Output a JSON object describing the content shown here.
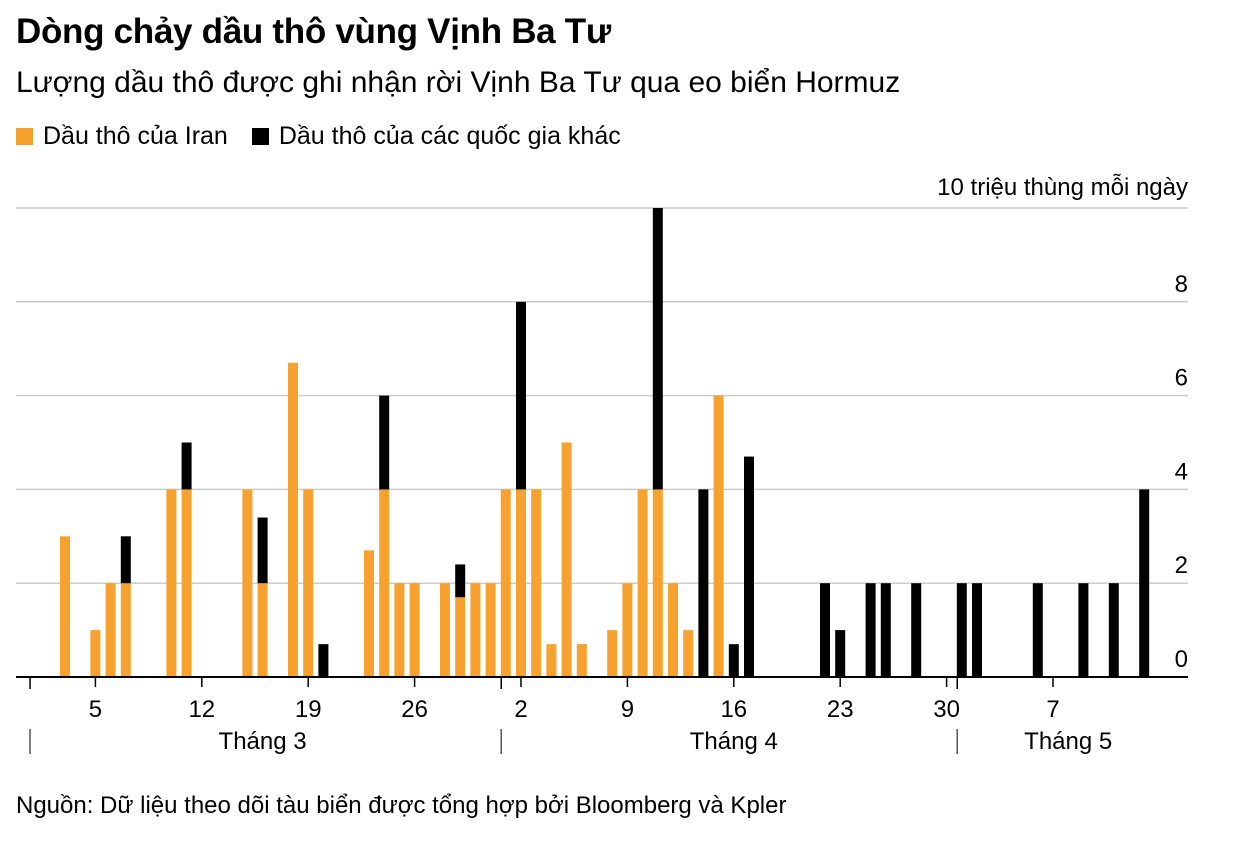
{
  "title": "Dòng chảy dầu thô vùng Vịnh Ba Tư",
  "subtitle": "Lượng dầu thô được ghi nhận rời Vịnh Ba Tư qua eo biển Hormuz",
  "source": "Nguồn: Dữ liệu theo dõi tàu biển được tổng hợp bởi Bloomberg và Kpler",
  "colors": {
    "iran": "#f7a12e",
    "other": "#000000",
    "grid": "#cccccc",
    "axis": "#000000"
  },
  "chart_data": {
    "type": "bar",
    "stacked": true,
    "unit_label": "10 triệu thùng mỗi ngày",
    "ylim": [
      0,
      10
    ],
    "yticks": [
      {
        "value": 0,
        "label": "0"
      },
      {
        "value": 2,
        "label": "2"
      },
      {
        "value": 4,
        "label": "4"
      },
      {
        "value": 6,
        "label": "6"
      },
      {
        "value": 8,
        "label": "8"
      },
      {
        "value": 10,
        "label": ""
      }
    ],
    "grid": true,
    "legend_position": "top-left",
    "x_start": "Mar 1",
    "x_day_count": 74,
    "x_ticks": [
      {
        "day": 5,
        "label": "5"
      },
      {
        "day": 12,
        "label": "12"
      },
      {
        "day": 19,
        "label": "19"
      },
      {
        "day": 26,
        "label": "26"
      },
      {
        "day": 33,
        "label": "2"
      },
      {
        "day": 40,
        "label": "9"
      },
      {
        "day": 47,
        "label": "16"
      },
      {
        "day": 54,
        "label": "23"
      },
      {
        "day": 61,
        "label": "30"
      },
      {
        "day": 68,
        "label": "7"
      }
    ],
    "months": [
      {
        "label": "Tháng 3",
        "start_day": 1,
        "label_day": 16
      },
      {
        "label": "Tháng 4",
        "start_day": 32,
        "label_day": 47
      },
      {
        "label": "Tháng 5",
        "start_day": 62,
        "label_day": 69
      }
    ],
    "series": [
      {
        "name": "Dầu thô của Iran",
        "color": "#f7a12e",
        "points": [
          {
            "day": 3,
            "value": 3.0
          },
          {
            "day": 5,
            "value": 1.0
          },
          {
            "day": 6,
            "value": 2.0
          },
          {
            "day": 7,
            "value": 2.0
          },
          {
            "day": 10,
            "value": 4.0
          },
          {
            "day": 11,
            "value": 4.0
          },
          {
            "day": 15,
            "value": 4.0
          },
          {
            "day": 16,
            "value": 2.0
          },
          {
            "day": 18,
            "value": 6.7
          },
          {
            "day": 19,
            "value": 4.0
          },
          {
            "day": 23,
            "value": 2.7
          },
          {
            "day": 24,
            "value": 4.0
          },
          {
            "day": 25,
            "value": 2.0
          },
          {
            "day": 26,
            "value": 2.0
          },
          {
            "day": 28,
            "value": 2.0
          },
          {
            "day": 29,
            "value": 1.7
          },
          {
            "day": 30,
            "value": 2.0
          },
          {
            "day": 31,
            "value": 2.0
          },
          {
            "day": 32,
            "value": 4.0
          },
          {
            "day": 33,
            "value": 4.0
          },
          {
            "day": 34,
            "value": 4.0
          },
          {
            "day": 35,
            "value": 0.7
          },
          {
            "day": 36,
            "value": 5.0
          },
          {
            "day": 37,
            "value": 0.7
          },
          {
            "day": 39,
            "value": 1.0
          },
          {
            "day": 40,
            "value": 2.0
          },
          {
            "day": 41,
            "value": 4.0
          },
          {
            "day": 42,
            "value": 4.0
          },
          {
            "day": 43,
            "value": 2.0
          },
          {
            "day": 44,
            "value": 1.0
          },
          {
            "day": 46,
            "value": 6.0
          }
        ]
      },
      {
        "name": "Dầu thô của các quốc gia khác",
        "color": "#000000",
        "points": [
          {
            "day": 7,
            "value": 1.0
          },
          {
            "day": 11,
            "value": 1.0
          },
          {
            "day": 16,
            "value": 1.4
          },
          {
            "day": 20,
            "value": 0.7
          },
          {
            "day": 24,
            "value": 2.0
          },
          {
            "day": 29,
            "value": 0.7
          },
          {
            "day": 33,
            "value": 4.0
          },
          {
            "day": 42,
            "value": 6.0
          },
          {
            "day": 45,
            "value": 4.0
          },
          {
            "day": 47,
            "value": 0.7
          },
          {
            "day": 48,
            "value": 4.7
          },
          {
            "day": 53,
            "value": 2.0
          },
          {
            "day": 54,
            "value": 1.0
          },
          {
            "day": 56,
            "value": 2.0
          },
          {
            "day": 57,
            "value": 2.0
          },
          {
            "day": 59,
            "value": 2.0
          },
          {
            "day": 62,
            "value": 2.0
          },
          {
            "day": 63,
            "value": 2.0
          },
          {
            "day": 67,
            "value": 2.0
          },
          {
            "day": 70,
            "value": 2.0
          },
          {
            "day": 72,
            "value": 2.0
          },
          {
            "day": 74,
            "value": 4.0
          }
        ]
      }
    ]
  }
}
